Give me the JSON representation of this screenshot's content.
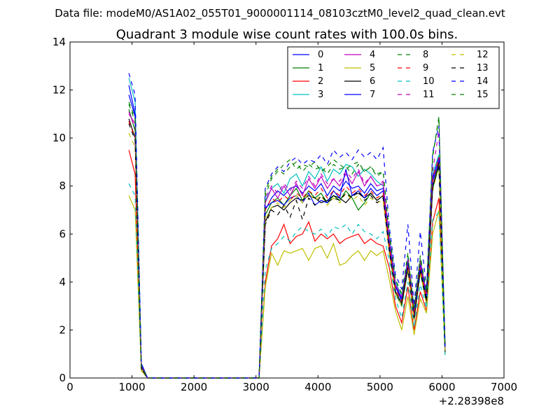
{
  "figure": {
    "suptitle": "Data file: modeM0/AS1A02_055T01_9000001114_08103cztM0_level2_quad_clean.evt"
  },
  "chart_data": {
    "type": "line",
    "title": "Quadrant 3 module wise count rates with 100.0s bins.",
    "xlabel": "",
    "ylabel": "",
    "xlim": [
      0,
      7000
    ],
    "ylim": [
      0,
      14
    ],
    "x_ticks": [
      0,
      1000,
      2000,
      3000,
      4000,
      5000,
      6000,
      7000
    ],
    "y_ticks": [
      0,
      2,
      4,
      6,
      8,
      10,
      12,
      14
    ],
    "x_offset_label": "+2.28398e8",
    "grid": false,
    "legend": {
      "placement": "top-right",
      "columns": 4
    },
    "x": [
      950,
      1050,
      1150,
      1250,
      1350,
      1450,
      1550,
      1650,
      1750,
      1850,
      1950,
      2050,
      2150,
      2250,
      2350,
      2450,
      2550,
      2650,
      2750,
      2850,
      2950,
      3050,
      3150,
      3250,
      3350,
      3450,
      3550,
      3650,
      3750,
      3850,
      3950,
      4050,
      4150,
      4250,
      4350,
      4450,
      4550,
      4650,
      4750,
      4850,
      4950,
      5050,
      5150,
      5250,
      5350,
      5450,
      5550,
      5650,
      5750,
      5850,
      5950,
      6050
    ],
    "series": [
      {
        "name": "0",
        "color": "#0000ff",
        "dash": "solid",
        "values": [
          11.8,
          10.9,
          0.5,
          0,
          0,
          0,
          0,
          0,
          0,
          0,
          0,
          0,
          0,
          0,
          0,
          0,
          0,
          0,
          0,
          0,
          0,
          0,
          7.0,
          7.5,
          7.8,
          7.6,
          7.9,
          8.0,
          7.7,
          8.0,
          7.8,
          8.1,
          7.6,
          8.0,
          7.8,
          8.2,
          7.9,
          8.0,
          7.7,
          8.1,
          7.8,
          7.9,
          5.5,
          3.8,
          3.2,
          4.8,
          2.6,
          4.7,
          3.3,
          8.2,
          9.0,
          1.2
        ]
      },
      {
        "name": "1",
        "color": "#008000",
        "dash": "solid",
        "values": [
          11.2,
          10.3,
          0.4,
          0,
          0,
          0,
          0,
          0,
          0,
          0,
          0,
          0,
          0,
          0,
          0,
          0,
          0,
          0,
          0,
          0,
          0,
          0,
          6.8,
          7.3,
          7.5,
          7.2,
          7.6,
          7.9,
          7.4,
          7.8,
          7.5,
          7.7,
          7.3,
          7.6,
          7.4,
          7.8,
          7.5,
          7.0,
          7.3,
          7.7,
          7.4,
          7.6,
          5.3,
          3.5,
          3.0,
          4.5,
          2.4,
          4.4,
          3.1,
          7.9,
          8.8,
          1.1
        ]
      },
      {
        "name": "2",
        "color": "#ff0000",
        "dash": "solid",
        "values": [
          9.5,
          8.5,
          0.4,
          0,
          0,
          0,
          0,
          0,
          0,
          0,
          0,
          0,
          0,
          0,
          0,
          0,
          0,
          0,
          0,
          0,
          0,
          0,
          4.0,
          5.5,
          5.8,
          6.4,
          5.6,
          5.9,
          6.0,
          6.5,
          5.7,
          6.0,
          5.8,
          6.0,
          5.6,
          5.8,
          5.9,
          6.0,
          5.6,
          5.8,
          5.6,
          5.5,
          4.6,
          3.0,
          2.3,
          3.8,
          2.0,
          3.6,
          2.8,
          6.5,
          7.5,
          1.0
        ]
      },
      {
        "name": "3",
        "color": "#00bfbf",
        "dash": "solid",
        "values": [
          12.5,
          11.5,
          0.6,
          0,
          0,
          0,
          0,
          0,
          0,
          0,
          0,
          0,
          0,
          0,
          0,
          0,
          0,
          0,
          0,
          0,
          0,
          0,
          7.4,
          7.9,
          8.1,
          7.7,
          8.3,
          8.5,
          8.0,
          8.6,
          8.3,
          8.8,
          8.2,
          8.7,
          8.5,
          8.9,
          8.8,
          8.4,
          8.7,
          8.5,
          8.2,
          8.0,
          5.9,
          4.0,
          3.4,
          5.0,
          2.8,
          4.9,
          3.5,
          8.5,
          9.3,
          1.2
        ]
      },
      {
        "name": "4",
        "color": "#bf00bf",
        "dash": "solid",
        "values": [
          11.0,
          10.6,
          0.5,
          0,
          0,
          0,
          0,
          0,
          0,
          0,
          0,
          0,
          0,
          0,
          0,
          0,
          0,
          0,
          0,
          0,
          0,
          0,
          7.3,
          7.9,
          7.5,
          8.0,
          7.6,
          8.1,
          7.6,
          8.3,
          7.9,
          8.4,
          7.9,
          8.3,
          8.0,
          8.5,
          8.1,
          8.6,
          8.0,
          8.4,
          8.0,
          8.1,
          5.7,
          3.9,
          3.3,
          4.9,
          2.7,
          4.8,
          3.4,
          8.4,
          9.1,
          1.2
        ]
      },
      {
        "name": "5",
        "color": "#bfbf00",
        "dash": "solid",
        "values": [
          7.6,
          7.0,
          0.3,
          0,
          0,
          0,
          0,
          0,
          0,
          0,
          0,
          0,
          0,
          0,
          0,
          0,
          0,
          0,
          0,
          0,
          0,
          0,
          3.8,
          5.2,
          4.7,
          5.3,
          5.2,
          5.3,
          5.4,
          4.9,
          5.4,
          5.5,
          5.0,
          5.6,
          4.7,
          4.8,
          5.1,
          5.3,
          4.9,
          5.3,
          5.1,
          5.3,
          4.1,
          2.8,
          2.0,
          3.4,
          1.8,
          3.3,
          2.7,
          6.0,
          7.0,
          1.0
        ]
      },
      {
        "name": "6",
        "color": "#000000",
        "dash": "solid",
        "values": [
          10.8,
          10.0,
          0.4,
          0,
          0,
          0,
          0,
          0,
          0,
          0,
          0,
          0,
          0,
          0,
          0,
          0,
          0,
          0,
          0,
          0,
          0,
          0,
          6.5,
          7.1,
          7.2,
          7.0,
          7.3,
          7.5,
          7.4,
          7.6,
          7.5,
          7.3,
          7.4,
          7.6,
          7.5,
          7.3,
          7.6,
          7.7,
          7.5,
          7.7,
          7.4,
          7.6,
          5.3,
          3.6,
          3.1,
          4.6,
          2.5,
          4.5,
          3.2,
          8.0,
          8.9,
          1.1
        ]
      },
      {
        "name": "7",
        "color": "#0000ff",
        "dash": "solid",
        "values": [
          12.2,
          11.0,
          0.6,
          0,
          0,
          0,
          0,
          0,
          0,
          0,
          0,
          0,
          0,
          0,
          0,
          0,
          0,
          0,
          0,
          0,
          0,
          0,
          7.1,
          7.3,
          7.4,
          7.2,
          7.5,
          7.6,
          7.3,
          7.7,
          7.2,
          7.4,
          7.3,
          7.8,
          7.5,
          8.7,
          7.6,
          7.8,
          7.5,
          7.9,
          7.6,
          7.8,
          5.6,
          3.8,
          3.3,
          4.8,
          2.6,
          4.7,
          3.4,
          8.3,
          9.2,
          1.2
        ]
      },
      {
        "name": "8",
        "color": "#008000",
        "dash": "dashed",
        "values": [
          11.5,
          10.8,
          0.5,
          0,
          0,
          0,
          0,
          0,
          0,
          0,
          0,
          0,
          0,
          0,
          0,
          0,
          0,
          0,
          0,
          0,
          0,
          0,
          7.6,
          8.3,
          8.6,
          8.9,
          9.1,
          8.7,
          8.9,
          8.8,
          9.0,
          8.6,
          8.8,
          9.1,
          8.9,
          8.7,
          8.9,
          9.0,
          8.6,
          8.8,
          8.5,
          8.6,
          6.1,
          4.1,
          3.5,
          5.2,
          2.9,
          5.1,
          3.6,
          9.3,
          10.8,
          1.3
        ]
      },
      {
        "name": "9",
        "color": "#ff0000",
        "dash": "dashed",
        "values": [
          10.7,
          10.0,
          0.5,
          0,
          0,
          0,
          0,
          0,
          0,
          0,
          0,
          0,
          0,
          0,
          0,
          0,
          0,
          0,
          0,
          0,
          0,
          0,
          7.0,
          7.5,
          7.3,
          7.6,
          7.4,
          7.7,
          7.5,
          7.8,
          7.6,
          7.9,
          7.5,
          7.8,
          7.6,
          8.0,
          7.7,
          7.9,
          7.6,
          7.8,
          7.5,
          7.7,
          5.5,
          3.7,
          3.2,
          4.7,
          2.6,
          4.6,
          3.3,
          8.3,
          9.2,
          1.1
        ]
      },
      {
        "name": "10",
        "color": "#00bfbf",
        "dash": "dashed",
        "values": [
          8.1,
          7.6,
          0.4,
          0,
          0,
          0,
          0,
          0,
          0,
          0,
          0,
          0,
          0,
          0,
          0,
          0,
          0,
          0,
          0,
          0,
          0,
          0,
          4.5,
          5.4,
          5.6,
          5.9,
          5.7,
          6.1,
          6.3,
          6.1,
          6.0,
          6.2,
          5.9,
          6.3,
          6.2,
          6.4,
          6.0,
          6.4,
          6.1,
          6.0,
          5.8,
          6.1,
          4.9,
          3.3,
          2.5,
          4.0,
          2.1,
          3.9,
          2.9,
          6.6,
          6.9,
          0.9
        ]
      },
      {
        "name": "11",
        "color": "#bf00bf",
        "dash": "dashed",
        "values": [
          11.1,
          10.4,
          0.5,
          0,
          0,
          0,
          0,
          0,
          0,
          0,
          0,
          0,
          0,
          0,
          0,
          0,
          0,
          0,
          0,
          0,
          0,
          0,
          7.5,
          8.0,
          7.7,
          8.1,
          7.8,
          8.2,
          7.9,
          8.4,
          8.0,
          8.5,
          8.1,
          8.3,
          8.2,
          8.6,
          8.3,
          8.7,
          8.1,
          8.4,
          8.0,
          8.2,
          5.8,
          3.9,
          3.4,
          5.0,
          2.8,
          4.9,
          3.5,
          8.6,
          10.3,
          1.2
        ]
      },
      {
        "name": "12",
        "color": "#bfbf00",
        "dash": "dashed",
        "values": [
          10.2,
          9.6,
          0.4,
          0,
          0,
          0,
          0,
          0,
          0,
          0,
          0,
          0,
          0,
          0,
          0,
          0,
          0,
          0,
          0,
          0,
          0,
          0,
          6.6,
          7.1,
          7.3,
          7.1,
          7.4,
          7.6,
          7.3,
          7.7,
          7.4,
          7.6,
          7.2,
          7.5,
          7.3,
          7.7,
          7.4,
          7.6,
          7.2,
          7.5,
          7.3,
          7.4,
          5.2,
          3.5,
          3.0,
          4.5,
          2.4,
          4.4,
          3.1,
          7.8,
          8.9,
          1.1
        ]
      },
      {
        "name": "13",
        "color": "#000000",
        "dash": "dashed",
        "values": [
          10.6,
          9.9,
          0.4,
          0,
          0,
          0,
          0,
          0,
          0,
          0,
          0,
          0,
          0,
          0,
          0,
          0,
          0,
          0,
          0,
          0,
          0,
          0,
          6.4,
          7.0,
          6.8,
          7.2,
          6.7,
          7.4,
          6.6,
          7.5,
          7.2,
          7.6,
          7.3,
          7.5,
          7.4,
          7.7,
          7.5,
          7.8,
          7.4,
          7.6,
          7.3,
          7.5,
          5.3,
          3.6,
          3.1,
          4.6,
          2.5,
          4.5,
          3.2,
          7.9,
          9.0,
          1.1
        ]
      },
      {
        "name": "14",
        "color": "#0000ff",
        "dash": "dashed",
        "values": [
          12.7,
          11.8,
          0.6,
          0,
          0,
          0,
          0,
          0,
          0,
          0,
          0,
          0,
          0,
          0,
          0,
          0,
          0,
          0,
          0,
          0,
          0,
          0,
          7.9,
          8.5,
          8.8,
          8.6,
          9.0,
          9.2,
          8.9,
          9.1,
          9.0,
          9.3,
          8.9,
          9.5,
          9.2,
          9.4,
          9.1,
          9.5,
          9.2,
          9.4,
          9.1,
          9.6,
          6.3,
          4.3,
          3.7,
          6.4,
          3.0,
          6.1,
          3.7,
          9.4,
          10.5,
          1.3
        ]
      },
      {
        "name": "15",
        "color": "#008000",
        "dash": "dashed",
        "values": [
          11.4,
          10.7,
          0.5,
          0,
          0,
          0,
          0,
          0,
          0,
          0,
          0,
          0,
          0,
          0,
          0,
          0,
          0,
          0,
          0,
          0,
          0,
          0,
          7.8,
          8.4,
          8.7,
          8.5,
          8.8,
          9.0,
          8.6,
          8.9,
          8.7,
          8.8,
          8.5,
          8.9,
          8.7,
          8.8,
          8.5,
          8.9,
          8.6,
          8.8,
          8.4,
          8.6,
          6.0,
          4.1,
          3.5,
          5.1,
          2.9,
          5.0,
          3.6,
          9.2,
          10.9,
          1.3
        ]
      }
    ]
  }
}
